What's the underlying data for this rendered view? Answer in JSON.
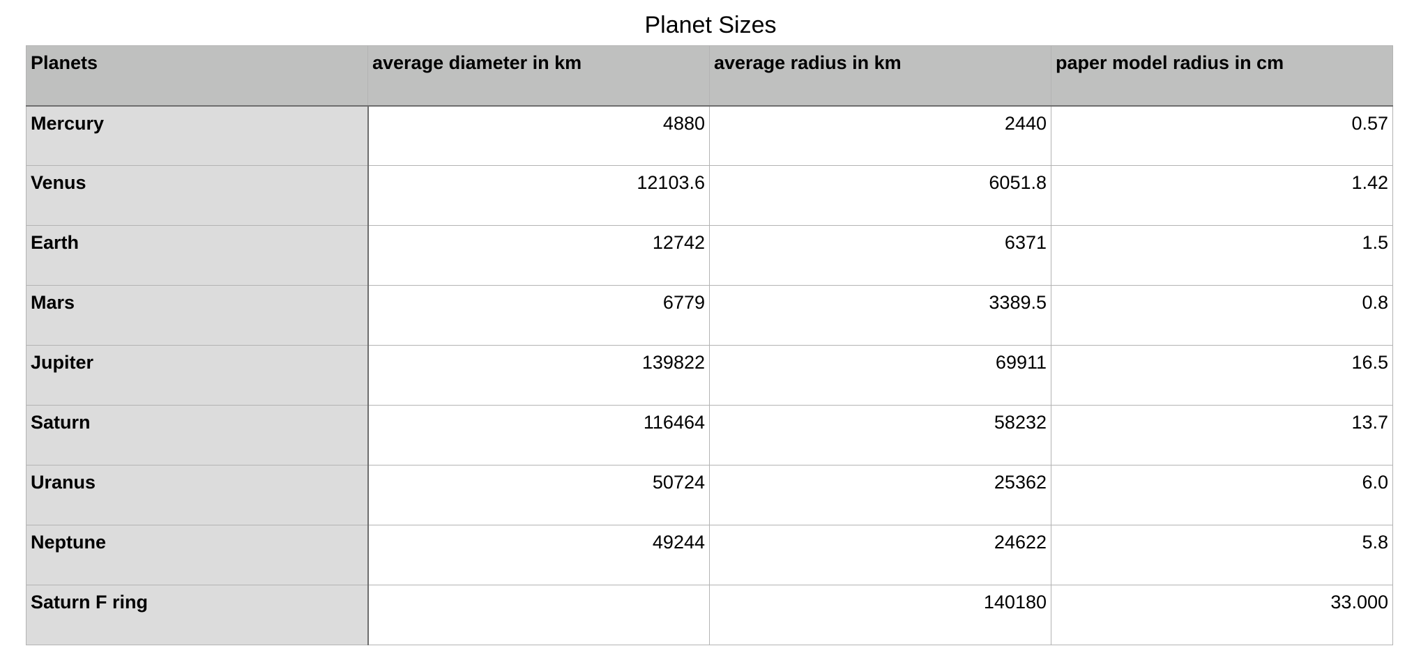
{
  "title": "Planet Sizes",
  "table": {
    "headers": [
      "Planets",
      "average diameter in km",
      "average radius in km",
      "paper model radius in cm"
    ],
    "rows": [
      [
        "Mercury",
        "4880",
        "2440",
        "0.57"
      ],
      [
        "Venus",
        "12103.6",
        "6051.8",
        "1.42"
      ],
      [
        "Earth",
        "12742",
        "6371",
        "1.5"
      ],
      [
        "Mars",
        "6779",
        "3389.5",
        "0.8"
      ],
      [
        "Jupiter",
        "139822",
        "69911",
        "16.5"
      ],
      [
        "Saturn",
        "116464",
        "58232",
        "13.7"
      ],
      [
        "Uranus",
        "50724",
        "25362",
        "6.0"
      ],
      [
        "Neptune",
        "49244",
        "24622",
        "5.8"
      ],
      [
        "Saturn F ring",
        "",
        "140180",
        "33.000"
      ]
    ]
  },
  "colors": {
    "header_bg": "#bfc0bf",
    "row_header_bg": "#dcdcdc",
    "cell_bg": "#ffffff",
    "grid_line": "#b3b3b3",
    "header_separator": "#6d6d6d"
  }
}
